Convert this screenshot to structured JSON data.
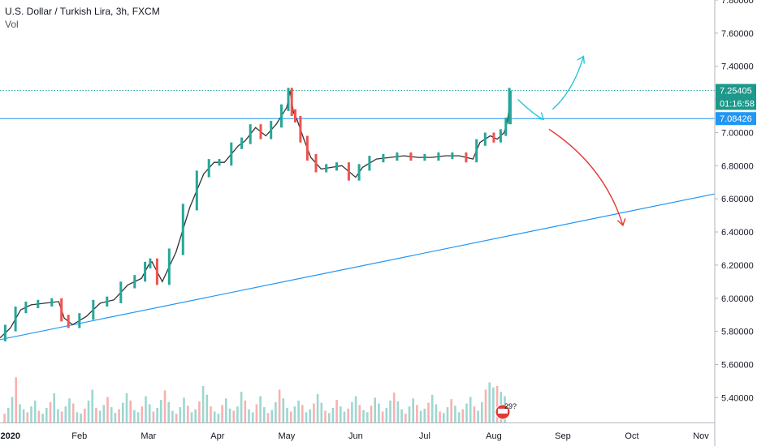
{
  "chart_data": {
    "type": "line",
    "title": "U.S. Dollar / Turkish Lira, 3h, FXCM",
    "volume_label": "Vol",
    "ylim": [
      5.25,
      7.8
    ],
    "xlim": [
      -0.15,
      10.2
    ],
    "y_ticks": [
      "7.80000",
      "7.60000",
      "7.40000",
      "7.20000",
      "7.00000",
      "6.80000",
      "6.60000",
      "6.40000",
      "6.20000",
      "6.00000",
      "5.80000",
      "5.60000",
      "5.40000"
    ],
    "y_tick_values": [
      7.8,
      7.6,
      7.4,
      7.2,
      7.0,
      6.8,
      6.6,
      6.4,
      6.2,
      6.0,
      5.8,
      5.6,
      5.4
    ],
    "x_ticks": [
      "2020",
      "Feb",
      "Mar",
      "Apr",
      "May",
      "Jun",
      "Jul",
      "Aug",
      "Sep",
      "Oct",
      "Nov"
    ],
    "x_tick_values": [
      0,
      1,
      2,
      3,
      4,
      5,
      6,
      7,
      8,
      9,
      10
    ],
    "price_series": {
      "name": "USD/TRY",
      "x": [
        -0.15,
        0,
        0.15,
        0.3,
        0.5,
        0.7,
        0.78,
        0.9,
        1.1,
        1.3,
        1.5,
        1.7,
        1.9,
        2.0,
        2.05,
        2.2,
        2.4,
        2.6,
        2.8,
        2.95,
        3.1,
        3.3,
        3.4,
        3.55,
        3.7,
        3.85,
        4.0,
        4.05,
        4.1,
        4.15,
        4.25,
        4.35,
        4.5,
        4.65,
        4.8,
        5.0,
        5.1,
        5.3,
        5.5,
        5.7,
        5.9,
        6.1,
        6.3,
        6.5,
        6.7,
        6.8,
        6.95,
        7.05,
        7.15,
        7.2,
        7.25
      ],
      "y": [
        5.76,
        5.82,
        5.93,
        5.96,
        5.97,
        5.98,
        5.88,
        5.84,
        5.89,
        5.97,
        5.99,
        6.08,
        6.12,
        6.2,
        6.22,
        6.1,
        6.28,
        6.55,
        6.75,
        6.82,
        6.82,
        6.92,
        6.95,
        7.03,
        6.98,
        7.05,
        7.15,
        7.25,
        7.12,
        7.08,
        6.96,
        6.85,
        6.78,
        6.79,
        6.8,
        6.73,
        6.79,
        6.84,
        6.85,
        6.86,
        6.85,
        6.85,
        6.86,
        6.86,
        6.84,
        6.94,
        6.98,
        6.96,
        7.0,
        7.07,
        7.25
      ]
    },
    "volume": [
      0.12,
      0.2,
      0.35,
      0.62,
      0.25,
      0.18,
      0.14,
      0.22,
      0.3,
      0.16,
      0.12,
      0.2,
      0.28,
      0.4,
      0.18,
      0.15,
      0.22,
      0.33,
      0.26,
      0.14,
      0.12,
      0.19,
      0.3,
      0.45,
      0.2,
      0.16,
      0.24,
      0.35,
      0.21,
      0.13,
      0.18,
      0.27,
      0.4,
      0.3,
      0.17,
      0.14,
      0.22,
      0.36,
      0.25,
      0.15,
      0.2,
      0.31,
      0.44,
      0.28,
      0.16,
      0.12,
      0.21,
      0.34,
      0.23,
      0.14,
      0.18,
      0.29,
      0.5,
      0.38,
      0.22,
      0.15,
      0.12,
      0.24,
      0.33,
      0.19,
      0.16,
      0.22,
      0.42,
      0.3,
      0.18,
      0.14,
      0.25,
      0.36,
      0.21,
      0.13,
      0.17,
      0.28,
      0.45,
      0.33,
      0.2,
      0.15,
      0.22,
      0.3,
      0.24,
      0.14,
      0.18,
      0.26,
      0.39,
      0.27,
      0.16,
      0.13,
      0.2,
      0.31,
      0.22,
      0.15,
      0.19,
      0.28,
      0.36,
      0.24,
      0.17,
      0.14,
      0.23,
      0.34,
      0.26,
      0.15,
      0.2,
      0.3,
      0.41,
      0.29,
      0.18,
      0.12,
      0.22,
      0.33,
      0.24,
      0.16,
      0.19,
      0.27,
      0.38,
      0.25,
      0.15,
      0.13,
      0.21,
      0.32,
      0.23,
      0.14,
      0.18,
      0.26,
      0.35,
      0.22,
      0.16,
      0.28,
      0.45,
      0.55,
      0.48,
      0.5,
      0.42,
      0.36
    ],
    "horizontal_levels": [
      {
        "label": "7.25405",
        "value": 7.25405,
        "style": "dotted"
      },
      {
        "label": "7.08426",
        "value": 7.08426,
        "style": "solid"
      }
    ],
    "countdown": "01:16:58",
    "trendline": {
      "x": [
        -0.15,
        10.2
      ],
      "y": [
        5.75,
        6.63
      ]
    },
    "annotations": {
      "event_badge": "29?"
    },
    "colors": {
      "up": "#26a69a",
      "down": "#ef5350",
      "line_blue": "#2196f3",
      "cyan_arrow": "#27c5dc",
      "red_arrow": "#e53935",
      "dotted_level": "#26a69a",
      "countdown_bg": "#1b998b"
    }
  }
}
